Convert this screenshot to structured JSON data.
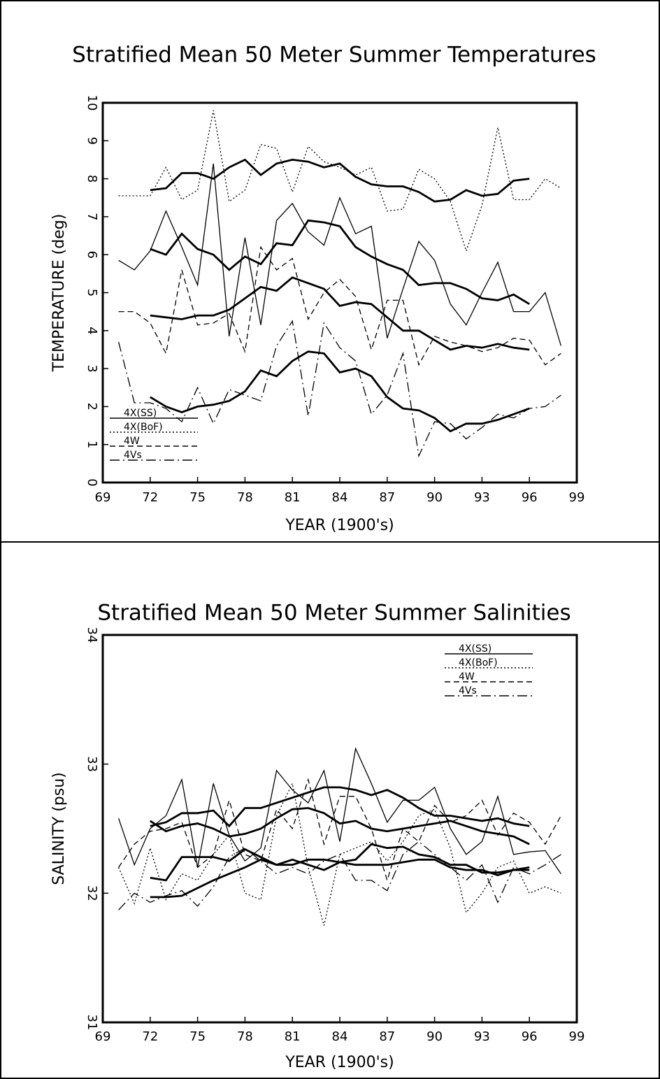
{
  "chart_data": [
    {
      "type": "line",
      "title": "Stratified Mean 50 Meter Summer Temperatures",
      "xlabel": "YEAR (1900's)",
      "ylabel": "TEMPERATURE (deg)",
      "x": [
        70,
        71,
        72,
        73,
        74,
        75,
        76,
        77,
        78,
        79,
        80,
        81,
        82,
        83,
        84,
        85,
        86,
        87,
        88,
        89,
        90,
        91,
        92,
        93,
        94,
        95,
        96,
        97,
        98
      ],
      "xlim": [
        69,
        99
      ],
      "xticks": [
        69,
        72,
        75,
        78,
        81,
        84,
        87,
        90,
        93,
        96,
        99
      ],
      "ylim": [
        0,
        10
      ],
      "yticks": [
        0,
        1,
        2,
        3,
        4,
        5,
        6,
        7,
        8,
        9,
        10
      ],
      "legend": "lower left",
      "color": "#000000",
      "series": [
        {
          "name": "4X(SS)",
          "dash": "solid",
          "values": [
            5.85,
            5.6,
            6.1,
            7.15,
            6.2,
            5.2,
            8.4,
            3.85,
            6.45,
            4.15,
            6.9,
            7.35,
            6.6,
            6.25,
            7.5,
            6.55,
            6.75,
            3.8,
            5.1,
            6.35,
            5.85,
            4.7,
            4.15,
            5.0,
            5.8,
            4.5,
            4.5,
            5.0,
            3.6
          ],
          "trend": [
            null,
            null,
            6.15,
            6.0,
            6.55,
            6.15,
            6.0,
            5.6,
            5.95,
            5.75,
            6.3,
            6.25,
            6.9,
            6.85,
            6.75,
            6.2,
            5.95,
            5.75,
            5.6,
            5.2,
            5.25,
            5.25,
            5.1,
            4.85,
            4.8,
            4.95,
            4.7,
            null,
            null
          ]
        },
        {
          "name": "4X(BoF)",
          "dash": "dotted",
          "values": [
            7.55,
            7.55,
            7.55,
            8.3,
            7.45,
            7.7,
            9.8,
            7.4,
            7.7,
            8.9,
            8.8,
            7.65,
            8.85,
            8.45,
            8.3,
            8.1,
            8.3,
            7.15,
            7.2,
            8.25,
            8.0,
            7.4,
            6.1,
            7.3,
            9.35,
            7.45,
            7.45,
            8.0,
            7.75
          ],
          "trend": [
            null,
            null,
            7.7,
            7.75,
            8.15,
            8.15,
            8.0,
            8.3,
            8.5,
            8.1,
            8.4,
            8.5,
            8.45,
            8.3,
            8.4,
            8.05,
            7.85,
            7.8,
            7.8,
            7.65,
            7.4,
            7.45,
            7.7,
            7.55,
            7.6,
            7.95,
            8.0,
            null,
            null
          ]
        },
        {
          "name": "4W",
          "dash": "dashed",
          "values": [
            4.5,
            4.5,
            4.2,
            3.4,
            5.6,
            4.15,
            4.2,
            4.45,
            3.45,
            6.2,
            5.6,
            5.9,
            4.3,
            5.0,
            5.35,
            4.9,
            3.5,
            4.8,
            4.8,
            3.1,
            3.85,
            3.7,
            3.6,
            3.45,
            3.55,
            3.8,
            3.75,
            3.1,
            3.4
          ],
          "trend": [
            null,
            null,
            4.4,
            4.35,
            4.3,
            4.4,
            4.4,
            4.55,
            4.85,
            5.15,
            5.05,
            5.4,
            5.25,
            5.1,
            4.65,
            4.75,
            4.7,
            4.35,
            4.0,
            4.0,
            3.75,
            3.5,
            3.6,
            3.55,
            3.65,
            3.55,
            3.5,
            null,
            null
          ]
        },
        {
          "name": "4Vs",
          "dash": "dashdot",
          "values": [
            3.7,
            2.1,
            2.1,
            1.95,
            1.6,
            2.5,
            1.55,
            2.45,
            2.3,
            2.15,
            3.6,
            4.25,
            1.75,
            4.2,
            3.55,
            3.2,
            1.8,
            2.3,
            3.4,
            0.7,
            1.6,
            1.55,
            1.15,
            1.45,
            1.8,
            1.7,
            1.95,
            2.0,
            2.3
          ],
          "trend": [
            null,
            null,
            2.25,
            2.0,
            1.85,
            2.0,
            2.05,
            2.15,
            2.4,
            2.95,
            2.8,
            3.2,
            3.45,
            3.4,
            2.9,
            3.0,
            2.8,
            2.25,
            1.95,
            1.9,
            1.7,
            1.35,
            1.55,
            1.55,
            1.65,
            1.8,
            1.95,
            null,
            null
          ]
        }
      ]
    },
    {
      "type": "line",
      "title": "Stratified Mean 50 Meter Summer Salinities",
      "xlabel": "YEAR (1900's)",
      "ylabel": "SALINITY (psu)",
      "x": [
        70,
        71,
        72,
        73,
        74,
        75,
        76,
        77,
        78,
        79,
        80,
        81,
        82,
        83,
        84,
        85,
        86,
        87,
        88,
        89,
        90,
        91,
        92,
        93,
        94,
        95,
        96,
        97,
        98
      ],
      "xlim": [
        69,
        99
      ],
      "xticks": [
        69,
        72,
        75,
        78,
        81,
        84,
        87,
        90,
        93,
        96,
        99
      ],
      "ylim": [
        31,
        34
      ],
      "yticks": [
        31,
        32,
        33,
        34
      ],
      "legend": "upper right",
      "color": "#000000",
      "series": [
        {
          "name": "4X(SS)",
          "dash": "solid",
          "values": [
            32.58,
            32.22,
            32.5,
            32.6,
            32.88,
            32.2,
            32.85,
            32.45,
            32.25,
            32.35,
            32.95,
            32.8,
            32.7,
            32.95,
            32.4,
            33.12,
            32.85,
            32.55,
            32.72,
            32.72,
            32.82,
            32.5,
            32.3,
            32.4,
            32.75,
            32.3,
            32.32,
            32.33,
            32.15
          ],
          "trend": [
            null,
            null,
            32.52,
            32.55,
            32.62,
            32.62,
            32.64,
            32.52,
            32.66,
            32.66,
            32.7,
            32.74,
            32.78,
            32.82,
            32.82,
            32.8,
            32.76,
            32.8,
            32.74,
            32.66,
            32.6,
            32.6,
            32.58,
            32.56,
            32.58,
            32.54,
            32.52,
            null,
            null
          ]
        },
        {
          "name": "4X(BoF)",
          "dash": "dotted",
          "values": [
            32.2,
            31.92,
            32.35,
            31.95,
            32.15,
            32.1,
            32.3,
            32.45,
            32.0,
            31.95,
            32.6,
            32.85,
            32.2,
            31.75,
            32.3,
            32.35,
            32.4,
            32.25,
            32.4,
            32.6,
            32.65,
            32.35,
            31.85,
            32.0,
            32.2,
            32.25,
            32.0,
            32.05,
            32.0
          ],
          "trend": [
            null,
            null,
            32.12,
            32.1,
            32.28,
            32.28,
            32.28,
            32.25,
            32.34,
            32.28,
            32.22,
            32.26,
            32.22,
            32.18,
            32.24,
            32.26,
            32.38,
            32.35,
            32.36,
            32.3,
            32.28,
            32.22,
            32.22,
            32.16,
            32.16,
            32.18,
            32.18,
            null,
            null
          ]
        },
        {
          "name": "4W",
          "dash": "dashed",
          "values": [
            32.2,
            32.38,
            32.48,
            32.5,
            32.55,
            32.2,
            32.3,
            32.72,
            32.3,
            32.25,
            32.65,
            32.5,
            32.88,
            32.38,
            32.75,
            32.75,
            32.5,
            32.1,
            32.5,
            32.4,
            32.68,
            32.55,
            32.6,
            32.72,
            32.45,
            32.62,
            32.55,
            32.38,
            32.6
          ],
          "trend": [
            null,
            null,
            32.56,
            32.48,
            32.52,
            32.54,
            32.5,
            32.44,
            32.46,
            32.5,
            32.58,
            32.65,
            32.66,
            32.62,
            32.54,
            32.56,
            32.5,
            32.48,
            32.5,
            32.52,
            32.54,
            32.56,
            32.52,
            32.48,
            32.46,
            32.44,
            32.38,
            null,
            null
          ]
        },
        {
          "name": "4Vs",
          "dash": "dashdot",
          "values": [
            31.87,
            32.0,
            31.93,
            31.98,
            32.02,
            31.9,
            32.05,
            32.28,
            32.35,
            32.25,
            32.15,
            32.2,
            32.15,
            32.25,
            32.3,
            32.1,
            32.1,
            32.02,
            32.3,
            32.4,
            32.3,
            32.2,
            32.1,
            32.22,
            31.93,
            32.2,
            32.15,
            32.22,
            32.3
          ],
          "trend": [
            null,
            null,
            31.97,
            31.97,
            31.98,
            32.04,
            32.1,
            32.15,
            32.2,
            32.26,
            32.22,
            32.22,
            32.26,
            32.26,
            32.24,
            32.22,
            32.22,
            32.22,
            32.24,
            32.26,
            32.26,
            32.2,
            32.18,
            32.18,
            32.14,
            32.18,
            32.2,
            null,
            null
          ]
        }
      ]
    }
  ]
}
